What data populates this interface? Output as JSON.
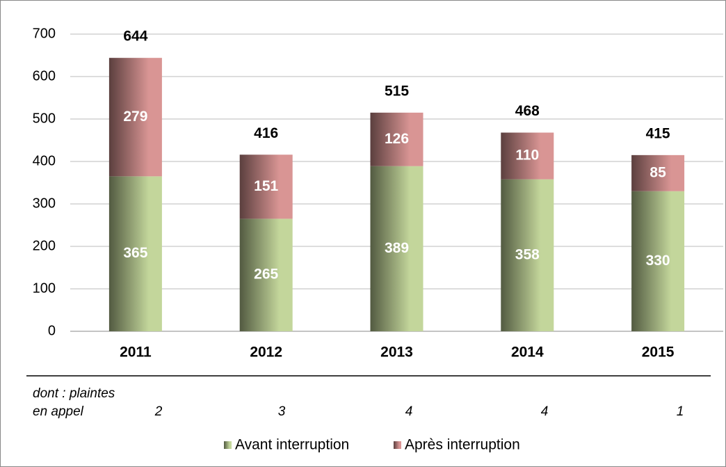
{
  "chart_data": {
    "type": "stacked_bar",
    "categories": [
      "2011",
      "2012",
      "2013",
      "2014",
      "2015"
    ],
    "series": [
      {
        "name": "Avant interruption",
        "color": "#c3d69b",
        "values": [
          365,
          265,
          389,
          358,
          330
        ]
      },
      {
        "name": "Après interruption",
        "color": "#d99594",
        "values": [
          279,
          151,
          126,
          110,
          85
        ]
      }
    ],
    "totals": [
      644,
      416,
      515,
      468,
      415
    ],
    "ylim": [
      0,
      700
    ],
    "yticks": [
      0,
      100,
      200,
      300,
      400,
      500,
      600,
      700
    ],
    "grid": true,
    "legend": "bottom",
    "appeal_label": [
      "dont : plaintes",
      "en appel"
    ],
    "appeal_values": [
      2,
      3,
      4,
      4,
      1
    ]
  }
}
